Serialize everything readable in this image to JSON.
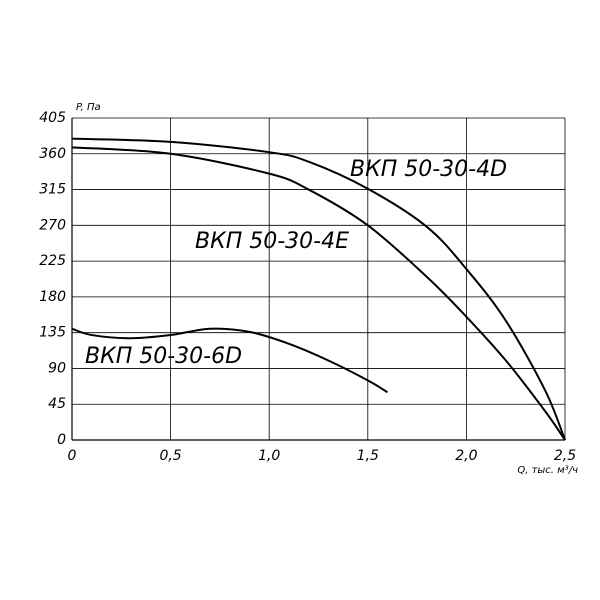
{
  "chart_data": {
    "type": "line",
    "y_label": "P, Па",
    "x_label": "Q, тыс. м³/ч",
    "xlim": [
      0,
      2.5
    ],
    "ylim": [
      0,
      405
    ],
    "xticks": [
      0,
      {
        "value": 0.5,
        "label": "0,5"
      },
      {
        "value": 1.0,
        "label": "1,0"
      },
      {
        "value": 1.5,
        "label": "1,5"
      },
      {
        "value": 2.0,
        "label": "2,0"
      },
      {
        "value": 2.5,
        "label": "2,5"
      }
    ],
    "yticks": [
      0,
      45,
      90,
      135,
      180,
      225,
      270,
      315,
      360,
      405
    ],
    "grid": true,
    "series": [
      {
        "name": "ВКП 50-30-4D",
        "color": "#000000",
        "x": [
          0,
          0.5,
          1.0,
          1.2,
          1.5,
          1.8,
          2.0,
          2.2,
          2.4,
          2.5
        ],
        "values": [
          379,
          375,
          362,
          350,
          316,
          268,
          215,
          150,
          62,
          0
        ]
      },
      {
        "name": "ВКП 50-30-4E",
        "color": "#000000",
        "x": [
          0,
          0.5,
          1.0,
          1.2,
          1.5,
          1.8,
          2.0,
          2.2,
          2.4,
          2.5
        ],
        "values": [
          368,
          360,
          335,
          315,
          270,
          205,
          155,
          100,
          36,
          0
        ]
      },
      {
        "name": "ВКП 50-30-6D",
        "color": "#000000",
        "x": [
          0,
          0.1,
          0.3,
          0.5,
          0.7,
          0.9,
          1.1,
          1.3,
          1.5,
          1.6
        ],
        "values": [
          140,
          132,
          128,
          132,
          140,
          136,
          121,
          100,
          75,
          60
        ]
      }
    ]
  }
}
